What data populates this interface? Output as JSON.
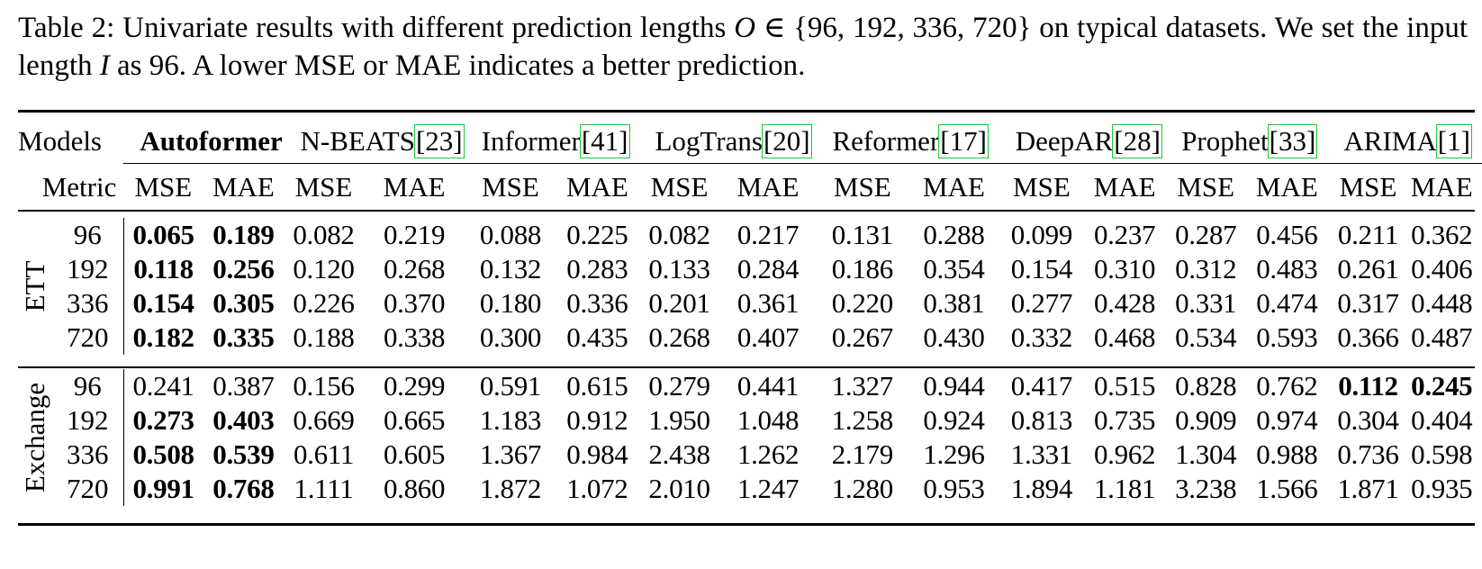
{
  "caption": {
    "lead": "Table 2: Univariate results with different prediction lengths ",
    "var_o": "O",
    "set": " ∈ {96, 192, 336, 720} on typical datasets. We set the input length ",
    "var_i": "I",
    "tail": " as 96. A lower MSE or MAE indicates a better prediction."
  },
  "header": {
    "models_label": "Models",
    "metric_label": "Metric",
    "models": [
      {
        "name": "Autoformer",
        "cite": "",
        "bold": true
      },
      {
        "name": "N-BEATS",
        "cite": "[23]",
        "bold": false
      },
      {
        "name": "Informer",
        "cite": "[41]",
        "bold": false
      },
      {
        "name": "LogTrans",
        "cite": "[20]",
        "bold": false
      },
      {
        "name": "Reformer",
        "cite": "[17]",
        "bold": false
      },
      {
        "name": "DeepAR",
        "cite": "[28]",
        "bold": false
      },
      {
        "name": "Prophet",
        "cite": "[33]",
        "bold": false
      },
      {
        "name": "ARIMA",
        "cite": "[1]",
        "bold": false
      }
    ],
    "metrics": [
      "MSE",
      "MAE"
    ]
  },
  "groups": [
    {
      "dataset": "ETT",
      "rows": [
        {
          "horizon": "96",
          "values": [
            "0.065",
            "0.189",
            "0.082",
            "0.219",
            "0.088",
            "0.225",
            "0.082",
            "0.217",
            "0.131",
            "0.288",
            "0.099",
            "0.237",
            "0.287",
            "0.456",
            "0.211",
            "0.362"
          ],
          "best": [
            0,
            1
          ]
        },
        {
          "horizon": "192",
          "values": [
            "0.118",
            "0.256",
            "0.120",
            "0.268",
            "0.132",
            "0.283",
            "0.133",
            "0.284",
            "0.186",
            "0.354",
            "0.154",
            "0.310",
            "0.312",
            "0.483",
            "0.261",
            "0.406"
          ],
          "best": [
            0,
            1
          ]
        },
        {
          "horizon": "336",
          "values": [
            "0.154",
            "0.305",
            "0.226",
            "0.370",
            "0.180",
            "0.336",
            "0.201",
            "0.361",
            "0.220",
            "0.381",
            "0.277",
            "0.428",
            "0.331",
            "0.474",
            "0.317",
            "0.448"
          ],
          "best": [
            0,
            1
          ]
        },
        {
          "horizon": "720",
          "values": [
            "0.182",
            "0.335",
            "0.188",
            "0.338",
            "0.300",
            "0.435",
            "0.268",
            "0.407",
            "0.267",
            "0.430",
            "0.332",
            "0.468",
            "0.534",
            "0.593",
            "0.366",
            "0.487"
          ],
          "best": [
            0,
            1
          ]
        }
      ]
    },
    {
      "dataset": "Exchange",
      "rows": [
        {
          "horizon": "96",
          "values": [
            "0.241",
            "0.387",
            "0.156",
            "0.299",
            "0.591",
            "0.615",
            "0.279",
            "0.441",
            "1.327",
            "0.944",
            "0.417",
            "0.515",
            "0.828",
            "0.762",
            "0.112",
            "0.245"
          ],
          "best": [
            14,
            15
          ]
        },
        {
          "horizon": "192",
          "values": [
            "0.273",
            "0.403",
            "0.669",
            "0.665",
            "1.183",
            "0.912",
            "1.950",
            "1.048",
            "1.258",
            "0.924",
            "0.813",
            "0.735",
            "0.909",
            "0.974",
            "0.304",
            "0.404"
          ],
          "best": [
            0,
            1
          ]
        },
        {
          "horizon": "336",
          "values": [
            "0.508",
            "0.539",
            "0.611",
            "0.605",
            "1.367",
            "0.984",
            "2.438",
            "1.262",
            "2.179",
            "1.296",
            "1.331",
            "0.962",
            "1.304",
            "0.988",
            "0.736",
            "0.598"
          ],
          "best": [
            0,
            1
          ]
        },
        {
          "horizon": "720",
          "values": [
            "0.991",
            "0.768",
            "1.111",
            "0.860",
            "1.872",
            "1.072",
            "2.010",
            "1.247",
            "1.280",
            "0.953",
            "1.894",
            "1.181",
            "3.238",
            "1.566",
            "1.871",
            "0.935"
          ],
          "best": [
            0,
            1
          ]
        }
      ]
    }
  ],
  "colors": {
    "text": "#000000",
    "citation_box": "#22c43a"
  }
}
